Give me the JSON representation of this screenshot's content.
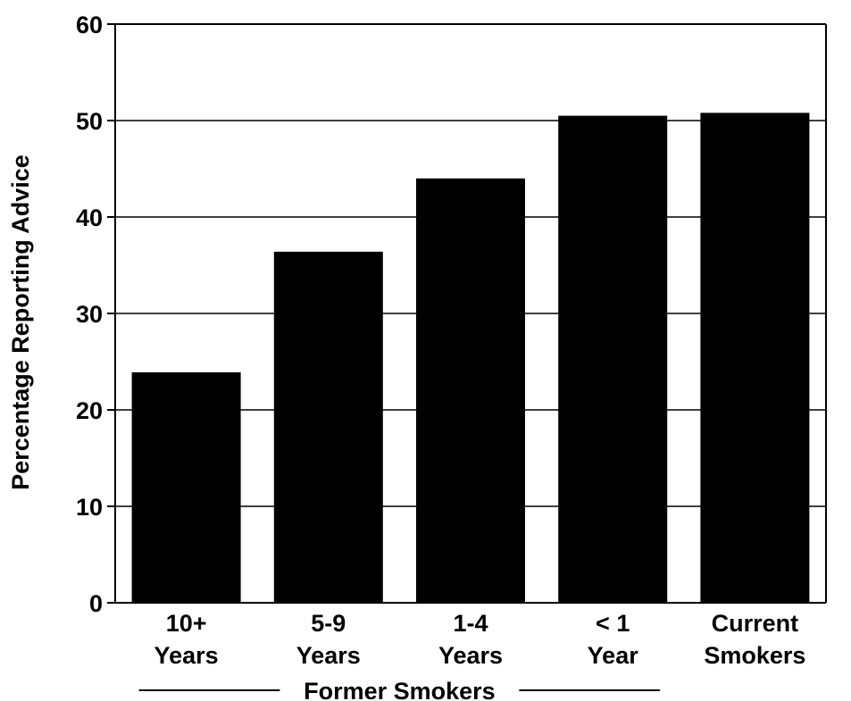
{
  "chart_data": {
    "type": "bar",
    "title": "",
    "xlabel": "",
    "ylabel": "Percentage Reporting Advice",
    "ylim": [
      0,
      60
    ],
    "yticks": [
      0,
      10,
      20,
      30,
      40,
      50,
      60
    ],
    "grid": "horizontal",
    "categories": [
      [
        "10+",
        "Years"
      ],
      [
        "5-9",
        "Years"
      ],
      [
        "1-4",
        "Years"
      ],
      [
        "< 1",
        "Year"
      ],
      [
        "Current",
        "Smokers"
      ]
    ],
    "values": [
      23.9,
      36.4,
      44.0,
      50.5,
      50.8
    ],
    "group_label": "Former Smokers",
    "group_span": [
      0,
      3
    ],
    "bar_color": "#000000"
  }
}
